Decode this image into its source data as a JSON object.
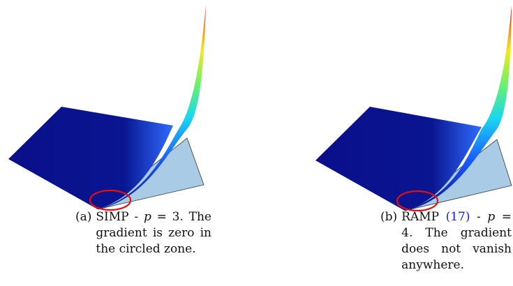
{
  "figures": [
    {
      "label": "(a)",
      "method": "SIMP",
      "sep": "-",
      "param": "p",
      "eq": "= 3.",
      "text": "The gradient is zero in the circled zone."
    },
    {
      "label": "(b)",
      "method": "RAMP",
      "ref": "(17)",
      "sep": "-",
      "param": "p",
      "eq": "= 4.",
      "text": "The gradient does not vanish anywhere."
    }
  ]
}
